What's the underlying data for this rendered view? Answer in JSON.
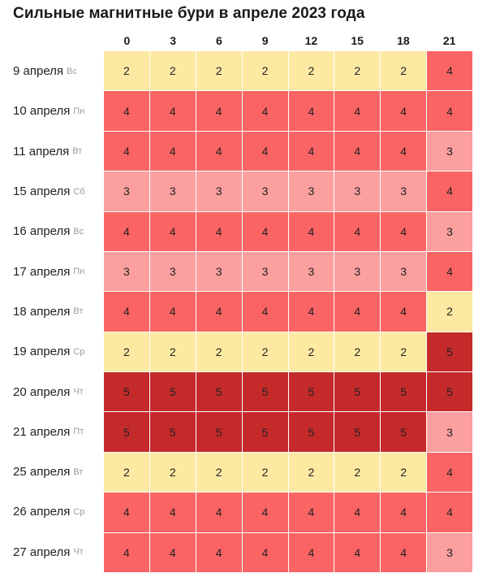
{
  "title": "Сильные магнитные бури в апреле 2023 года",
  "colors": {
    "level_2": "#fde9a2",
    "level_3": "#fb9f9f",
    "level_4": "#fb6464",
    "level_5": "#c52a2a"
  },
  "chart_data": {
    "type": "heatmap",
    "title": "Сильные магнитные бури в апреле 2023 года",
    "x": [
      "0",
      "3",
      "6",
      "9",
      "12",
      "15",
      "18",
      "21"
    ],
    "rows": [
      {
        "date": "9 апреля",
        "dow": "Вс",
        "values": [
          2,
          2,
          2,
          2,
          2,
          2,
          2,
          4
        ]
      },
      {
        "date": "10 апреля",
        "dow": "Пн",
        "values": [
          4,
          4,
          4,
          4,
          4,
          4,
          4,
          4
        ]
      },
      {
        "date": "11 апреля",
        "dow": "Вт",
        "values": [
          4,
          4,
          4,
          4,
          4,
          4,
          4,
          3
        ]
      },
      {
        "date": "15 апреля",
        "dow": "Сб",
        "values": [
          3,
          3,
          3,
          3,
          3,
          3,
          3,
          4
        ]
      },
      {
        "date": "16 апреля",
        "dow": "Вс",
        "values": [
          4,
          4,
          4,
          4,
          4,
          4,
          4,
          3
        ]
      },
      {
        "date": "17 апреля",
        "dow": "Пн",
        "values": [
          3,
          3,
          3,
          3,
          3,
          3,
          3,
          4
        ]
      },
      {
        "date": "18 апреля",
        "dow": "Вт",
        "values": [
          4,
          4,
          4,
          4,
          4,
          4,
          4,
          2
        ]
      },
      {
        "date": "19 апреля",
        "dow": "Ср",
        "values": [
          2,
          2,
          2,
          2,
          2,
          2,
          2,
          5
        ]
      },
      {
        "date": "20 апреля",
        "dow": "Чт",
        "values": [
          5,
          5,
          5,
          5,
          5,
          5,
          5,
          5
        ]
      },
      {
        "date": "21 апреля",
        "dow": "Пт",
        "values": [
          5,
          5,
          5,
          5,
          5,
          5,
          5,
          3
        ]
      },
      {
        "date": "25 апреля",
        "dow": "Вт",
        "values": [
          2,
          2,
          2,
          2,
          2,
          2,
          2,
          4
        ]
      },
      {
        "date": "26 апреля",
        "dow": "Ср",
        "values": [
          4,
          4,
          4,
          4,
          4,
          4,
          4,
          4
        ]
      },
      {
        "date": "27 апреля",
        "dow": "Чт",
        "values": [
          4,
          4,
          4,
          4,
          4,
          4,
          4,
          3
        ]
      }
    ]
  }
}
